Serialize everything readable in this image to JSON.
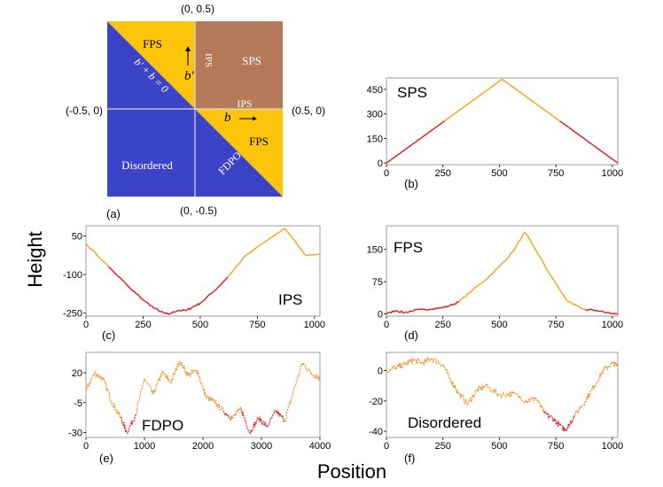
{
  "figure": {
    "ylabel": "Height",
    "xlabel": "Position"
  },
  "phase_diagram": {
    "panel_label": "(a)",
    "coords": {
      "top": "(0, 0.5)",
      "bottom": "(0, -0.5)",
      "left": "(-0.5, 0)",
      "right": "(0.5, 0)"
    },
    "regions": {
      "fps_top": "FPS",
      "sps": "SPS",
      "ips_vertical": "IPS",
      "ips_horizontal": "IPS",
      "fps_right": "FPS",
      "fdpo": "FDPO",
      "disordered": "Disordered"
    },
    "line_eq": "b' + b = 0",
    "b_label": "b",
    "bprime_label": "b′",
    "colors": {
      "blue": "#3b44c6",
      "yellow": "#fcc40a",
      "brown": "#b47a5a"
    }
  },
  "chart_data": [
    {
      "id": "b",
      "type": "line",
      "title": "SPS",
      "panel_label": "(b)",
      "xlim": [
        0,
        1024
      ],
      "ylim": [
        -10,
        520
      ],
      "xticks": [
        0,
        250,
        500,
        750,
        1000
      ],
      "yticks": [
        0,
        150,
        300,
        450
      ],
      "x": [
        0,
        256,
        512,
        768,
        1024
      ],
      "y": [
        0,
        256,
        512,
        256,
        0
      ],
      "series_colors": [
        "#e8141c",
        "#f7a217",
        "#f7a217",
        "#e8141c"
      ]
    },
    {
      "id": "c",
      "type": "line",
      "title": "IPS",
      "panel_label": "(c)",
      "xlim": [
        0,
        1024
      ],
      "ylim": [
        -262,
        90
      ],
      "xticks": [
        0,
        250,
        500,
        750,
        1000
      ],
      "yticks": [
        -250,
        -100,
        50
      ],
      "x": [
        0,
        100,
        200,
        260,
        300,
        340,
        360,
        400,
        440,
        470,
        500,
        560,
        620,
        700,
        870,
        960,
        1024
      ],
      "y": [
        20,
        -70,
        -160,
        -205,
        -232,
        -250,
        -255,
        -240,
        -240,
        -225,
        -212,
        -165,
        -110,
        -25,
        80,
        -25,
        -20
      ],
      "series_colors": [
        "#f7a217",
        "#e8141c",
        "#e8141c",
        "#e8141c",
        "#e8141c",
        "#e8141c",
        "#e8141c",
        "#e8141c",
        "#e8141c",
        "#e8141c",
        "#e8141c",
        "#e8141c",
        "#f7a217",
        "#f7a217",
        "#f7a217",
        "#f7a217"
      ]
    },
    {
      "id": "d",
      "type": "line",
      "title": "FPS",
      "panel_label": "(d)",
      "xlim": [
        0,
        1024
      ],
      "ylim": [
        -5,
        205
      ],
      "xticks": [
        0,
        250,
        500,
        750,
        1000
      ],
      "yticks": [
        0,
        75,
        150
      ],
      "x": [
        0,
        40,
        80,
        120,
        160,
        200,
        240,
        280,
        320,
        380,
        440,
        500,
        560,
        612,
        660,
        720,
        800,
        880,
        940,
        1024
      ],
      "y": [
        0,
        8,
        3,
        8,
        10,
        12,
        14,
        19,
        28,
        55,
        80,
        110,
        145,
        190,
        150,
        95,
        30,
        10,
        6,
        0
      ],
      "series_colors": [
        "#e8141c",
        "#e8141c",
        "#e8141c",
        "#e8141c",
        "#e8141c",
        "#e8141c",
        "#e8141c",
        "#e8141c",
        "#f7a217",
        "#f7a217",
        "#f7a217",
        "#f7a217",
        "#f7a217",
        "#f7a217",
        "#f7a217",
        "#f7a217",
        "#f7a217",
        "#e8141c",
        "#e8141c"
      ]
    },
    {
      "id": "e",
      "type": "line",
      "title": "FDPO",
      "panel_label": "(e)",
      "xlim": [
        0,
        4000
      ],
      "ylim": [
        -34,
        37
      ],
      "xticks": [
        0,
        1000,
        2000,
        3000,
        4000
      ],
      "yticks": [
        -30,
        -5,
        20
      ],
      "x": [
        0,
        150,
        300,
        450,
        600,
        700,
        850,
        1000,
        1150,
        1300,
        1450,
        1600,
        1750,
        1900,
        2050,
        2200,
        2350,
        2500,
        2650,
        2800,
        2950,
        3100,
        3250,
        3400,
        3550,
        3700,
        3850,
        4000
      ],
      "y": [
        5,
        20,
        14,
        -5,
        -18,
        -30,
        -15,
        15,
        2,
        20,
        12,
        30,
        18,
        22,
        0,
        -5,
        -12,
        -18,
        -10,
        -30,
        -18,
        -25,
        -12,
        -20,
        5,
        28,
        20,
        15
      ],
      "color": "#f08a16"
    },
    {
      "id": "f",
      "type": "line",
      "title": "Disordered",
      "panel_label": "(f)",
      "xlim": [
        0,
        1024
      ],
      "ylim": [
        -44,
        12
      ],
      "xticks": [
        0,
        250,
        500,
        750,
        1000
      ],
      "yticks": [
        -40,
        -20,
        0
      ],
      "x": [
        0,
        40,
        80,
        120,
        160,
        200,
        250,
        280,
        320,
        360,
        400,
        440,
        500,
        560,
        620,
        660,
        700,
        740,
        780,
        800,
        830,
        880,
        920,
        960,
        1000,
        1024
      ],
      "y": [
        0,
        2,
        4,
        7,
        5,
        8,
        4,
        -5,
        -15,
        -22,
        -13,
        -10,
        -16,
        -15,
        -20,
        -18,
        -28,
        -32,
        -38,
        -38,
        -30,
        -20,
        -10,
        0,
        5,
        3
      ],
      "color": "#f08a16"
    }
  ]
}
